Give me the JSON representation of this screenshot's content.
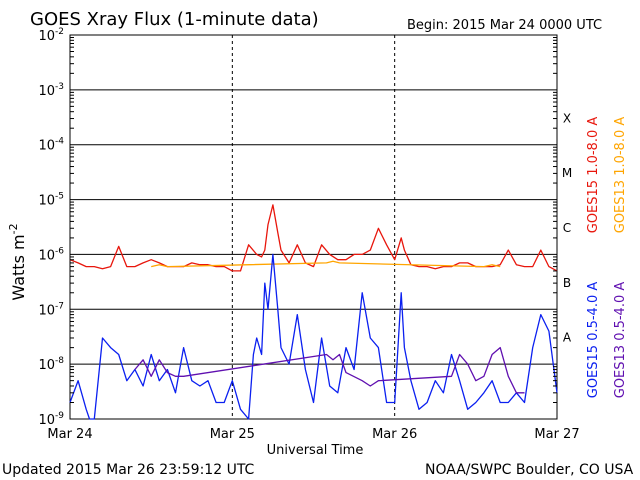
{
  "chart_data": {
    "type": "line",
    "title": "GOES Xray Flux (1-minute data)",
    "begin_label": "Begin:  2015 Mar 24 0000 UTC",
    "xlabel": "Universal Time",
    "ylabel_main": "Watts m",
    "ylabel_exp": "-2",
    "x_ticks": [
      "Mar 24",
      "Mar 25",
      "Mar 26",
      "Mar 27"
    ],
    "x_range_days": [
      0,
      3
    ],
    "y_scale": "log",
    "ylim": [
      1e-09,
      0.01
    ],
    "y_ticks": [
      {
        "base": "10",
        "exp": "-2",
        "value": 0.01
      },
      {
        "base": "10",
        "exp": "-3",
        "value": 0.001
      },
      {
        "base": "10",
        "exp": "-4",
        "value": 0.0001
      },
      {
        "base": "10",
        "exp": "-5",
        "value": 1e-05
      },
      {
        "base": "10",
        "exp": "-6",
        "value": 1e-06
      },
      {
        "base": "10",
        "exp": "-7",
        "value": 1e-07
      },
      {
        "base": "10",
        "exp": "-8",
        "value": 1e-08
      },
      {
        "base": "10",
        "exp": "-9",
        "value": 1e-09
      }
    ],
    "flare_classes": [
      {
        "label": "X",
        "value": 0.0001
      },
      {
        "label": "M",
        "value": 1e-05
      },
      {
        "label": "C",
        "value": 1e-06
      },
      {
        "label": "B",
        "value": 1e-07
      },
      {
        "label": "A",
        "value": 1e-08
      }
    ],
    "grid": true,
    "series": [
      {
        "name": "GOES15 1.0-8.0 A",
        "color": "#e8160c",
        "x": [
          0,
          0.05,
          0.1,
          0.15,
          0.2,
          0.25,
          0.3,
          0.35,
          0.4,
          0.45,
          0.5,
          0.55,
          0.6,
          0.65,
          0.7,
          0.75,
          0.8,
          0.85,
          0.9,
          0.95,
          1.0,
          1.05,
          1.1,
          1.15,
          1.18,
          1.2,
          1.22,
          1.25,
          1.28,
          1.3,
          1.35,
          1.4,
          1.45,
          1.5,
          1.55,
          1.6,
          1.65,
          1.7,
          1.75,
          1.8,
          1.85,
          1.9,
          1.95,
          2.0,
          2.04,
          2.06,
          2.1,
          2.15,
          2.2,
          2.25,
          2.3,
          2.35,
          2.4,
          2.45,
          2.5,
          2.55,
          2.6,
          2.65,
          2.7,
          2.75,
          2.8,
          2.85,
          2.9,
          2.95,
          3.0
        ],
        "y": [
          8e-07,
          7e-07,
          6e-07,
          6e-07,
          5.5e-07,
          6e-07,
          1.4e-06,
          6e-07,
          6e-07,
          7e-07,
          8e-07,
          7e-07,
          6e-07,
          6e-07,
          6e-07,
          7e-07,
          6.5e-07,
          6.5e-07,
          6e-07,
          6e-07,
          5e-07,
          5e-07,
          1.5e-06,
          1e-06,
          9e-07,
          1.2e-06,
          3.5e-06,
          8e-06,
          2.5e-06,
          1.2e-06,
          7e-07,
          1.5e-06,
          7e-07,
          6e-07,
          1.5e-06,
          1e-06,
          8e-07,
          8e-07,
          1e-06,
          1e-06,
          1.2e-06,
          3e-06,
          1.5e-06,
          8e-07,
          2e-06,
          1.2e-06,
          6.5e-07,
          6e-07,
          6e-07,
          5.5e-07,
          6e-07,
          6e-07,
          7e-07,
          7e-07,
          6e-07,
          6e-07,
          6e-07,
          6.5e-07,
          1.2e-06,
          6.5e-07,
          6e-07,
          6e-07,
          1.2e-06,
          6e-07,
          5e-07
        ]
      },
      {
        "name": "GOES13 1.0-8.0 A",
        "color": "#ffa500",
        "x": [
          0.5,
          0.55,
          0.6,
          1.58,
          1.62,
          1.66,
          2.55,
          2.6,
          2.65
        ],
        "y": [
          6e-07,
          6.5e-07,
          6e-07,
          7e-07,
          7.5e-07,
          7e-07,
          6e-07,
          6.5e-07,
          6e-07
        ]
      },
      {
        "name": "GOES15 0.5-4.0 A",
        "color": "#0b20f0",
        "x": [
          0,
          0.05,
          0.1,
          0.12,
          0.15,
          0.2,
          0.25,
          0.3,
          0.35,
          0.4,
          0.45,
          0.5,
          0.55,
          0.6,
          0.65,
          0.7,
          0.75,
          0.8,
          0.85,
          0.9,
          0.95,
          1.0,
          1.05,
          1.1,
          1.13,
          1.15,
          1.18,
          1.2,
          1.22,
          1.25,
          1.28,
          1.3,
          1.35,
          1.4,
          1.45,
          1.5,
          1.55,
          1.6,
          1.65,
          1.7,
          1.75,
          1.8,
          1.85,
          1.9,
          1.95,
          2.0,
          2.04,
          2.06,
          2.1,
          2.15,
          2.2,
          2.25,
          2.3,
          2.35,
          2.4,
          2.45,
          2.5,
          2.55,
          2.6,
          2.65,
          2.7,
          2.75,
          2.8,
          2.85,
          2.9,
          2.95,
          3.0
        ],
        "y": [
          2e-09,
          5e-09,
          1.5e-09,
          1e-09,
          1e-09,
          3e-08,
          2e-08,
          1.5e-08,
          5e-09,
          8e-09,
          4e-09,
          1.5e-08,
          5e-09,
          8e-09,
          3e-09,
          2e-08,
          5e-09,
          4e-09,
          5e-09,
          2e-09,
          2e-09,
          5e-09,
          1.5e-09,
          1e-09,
          1.5e-08,
          3e-08,
          1.5e-08,
          3e-07,
          1e-07,
          1e-06,
          1e-07,
          2e-08,
          1e-08,
          8e-08,
          8e-09,
          2e-09,
          3e-08,
          4e-09,
          3e-09,
          2e-08,
          8e-09,
          2e-07,
          3e-08,
          2e-08,
          2e-09,
          2e-09,
          2e-07,
          2e-08,
          5e-09,
          1.5e-09,
          2e-09,
          5e-09,
          3e-09,
          1.5e-08,
          5e-09,
          1.5e-09,
          2e-09,
          3e-09,
          5e-09,
          2e-09,
          2e-09,
          3e-09,
          2e-09,
          2e-08,
          8e-08,
          4e-08,
          3e-09
        ]
      },
      {
        "name": "GOES13 0.5-4.0 A",
        "color": "#6010b0",
        "x": [
          0.4,
          0.45,
          0.5,
          0.55,
          0.6,
          0.65,
          0.7,
          1.58,
          1.62,
          1.66,
          1.7,
          1.8,
          1.85,
          1.9,
          2.35,
          2.4,
          2.45,
          2.5,
          2.55,
          2.6,
          2.65,
          2.7,
          2.75,
          2.8
        ],
        "y": [
          8e-09,
          1.2e-08,
          6e-09,
          1.2e-08,
          7e-09,
          6e-09,
          6e-09,
          1.5e-08,
          1.2e-08,
          1.5e-08,
          7e-09,
          5e-09,
          4e-09,
          5e-09,
          6e-09,
          1.5e-08,
          1e-08,
          5e-09,
          6e-09,
          1.5e-08,
          2e-08,
          6e-09,
          3e-09,
          3e-09
        ]
      }
    ]
  },
  "footer": {
    "updated": "Updated 2015 Mar 26 23:59:12 UTC",
    "credit": "NOAA/SWPC Boulder, CO USA"
  }
}
